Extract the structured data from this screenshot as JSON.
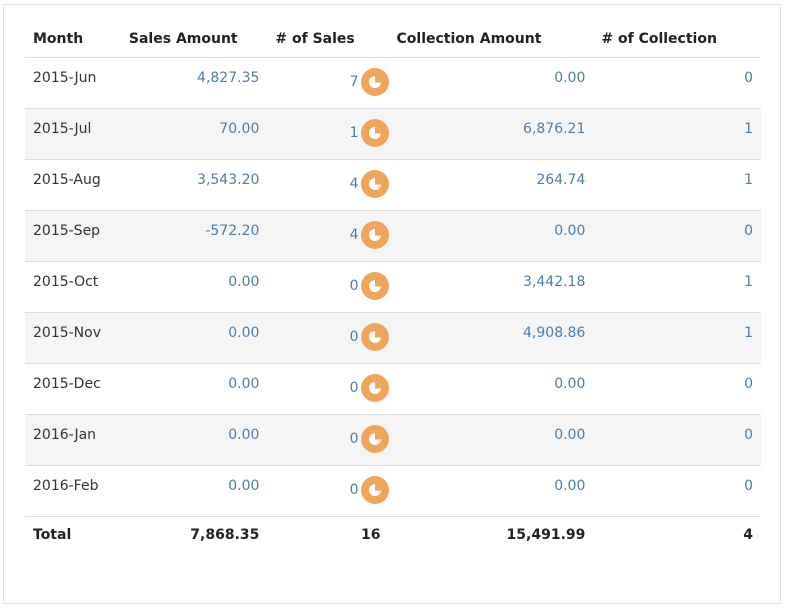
{
  "headers": {
    "month": "Month",
    "sales_amount": "Sales Amount",
    "num_sales": "# of Sales",
    "collection_amount": "Collection Amount",
    "num_collection": "# of Collection"
  },
  "rows": [
    {
      "month": "2015-Jun",
      "sales_amount": "4,827.35",
      "num_sales": "7",
      "collection_amount": "0.00",
      "num_collection": "0"
    },
    {
      "month": "2015-Jul",
      "sales_amount": "70.00",
      "num_sales": "1",
      "collection_amount": "6,876.21",
      "num_collection": "1"
    },
    {
      "month": "2015-Aug",
      "sales_amount": "3,543.20",
      "num_sales": "4",
      "collection_amount": "264.74",
      "num_collection": "1"
    },
    {
      "month": "2015-Sep",
      "sales_amount": "-572.20",
      "num_sales": "4",
      "collection_amount": "0.00",
      "num_collection": "0"
    },
    {
      "month": "2015-Oct",
      "sales_amount": "0.00",
      "num_sales": "0",
      "collection_amount": "3,442.18",
      "num_collection": "1"
    },
    {
      "month": "2015-Nov",
      "sales_amount": "0.00",
      "num_sales": "0",
      "collection_amount": "4,908.86",
      "num_collection": "1"
    },
    {
      "month": "2015-Dec",
      "sales_amount": "0.00",
      "num_sales": "0",
      "collection_amount": "0.00",
      "num_collection": "0"
    },
    {
      "month": "2016-Jan",
      "sales_amount": "0.00",
      "num_sales": "0",
      "collection_amount": "0.00",
      "num_collection": "0"
    },
    {
      "month": "2016-Feb",
      "sales_amount": "0.00",
      "num_sales": "0",
      "collection_amount": "0.00",
      "num_collection": "0"
    }
  ],
  "totals": {
    "label": "Total",
    "sales_amount": "7,868.35",
    "num_sales": "16",
    "collection_amount": "15,491.99",
    "num_collection": "4"
  },
  "icons": {
    "row_action": "pie-chart-icon"
  },
  "colors": {
    "link": "#4f7da8",
    "pie_button": "#f0a65a",
    "stripe": "#f5f5f5",
    "border": "#dddddd"
  }
}
